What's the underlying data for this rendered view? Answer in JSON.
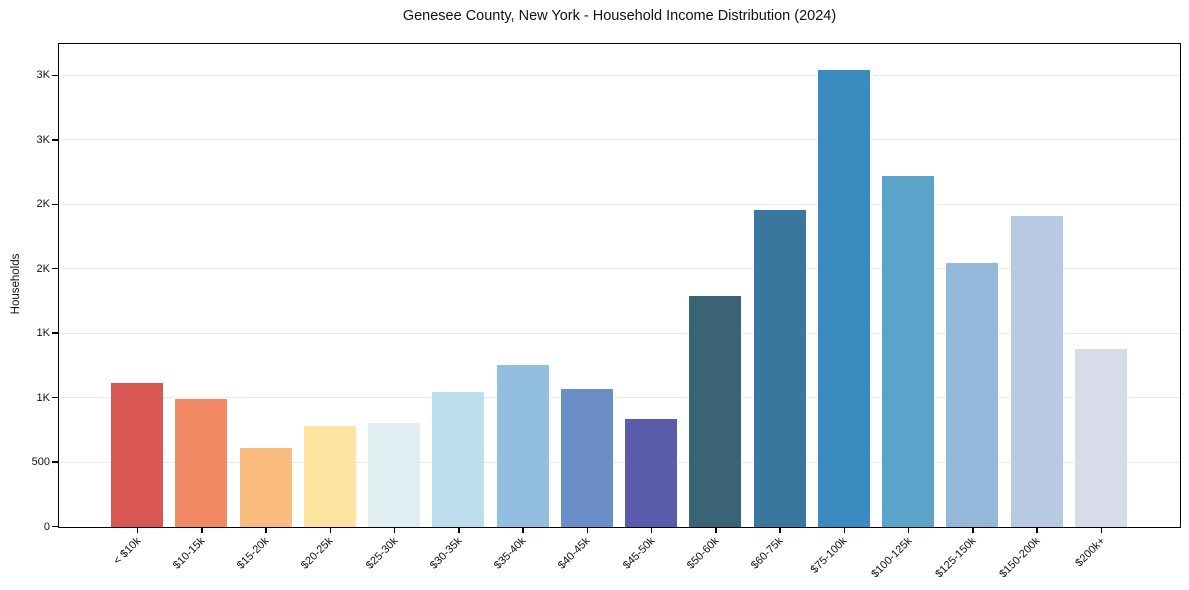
{
  "chart_data": {
    "type": "bar",
    "title": "Genesee County, New York - Household Income Distribution (2024)",
    "xlabel": "",
    "ylabel": "Households",
    "categories": [
      "< $10k",
      "$10-15k",
      "$15-20k",
      "$20-25k",
      "$25-30k",
      "$30-35k",
      "$35-40k",
      "$40-45k",
      "$45-50k",
      "$50-60k",
      "$60-75k",
      "$75-100k",
      "$100-125k",
      "$125-150k",
      "$150-200k",
      "$200k+"
    ],
    "values": [
      1115,
      995,
      615,
      780,
      805,
      1050,
      1255,
      1070,
      840,
      1795,
      2460,
      3545,
      2725,
      2050,
      2415,
      1385
    ],
    "bar_colors": [
      "#d85755",
      "#f18a64",
      "#fbbc80",
      "#fde4a0",
      "#e0eef2",
      "#bcdeee",
      "#92bedf",
      "#6a8ec5",
      "#5b5bab",
      "#3a6376",
      "#38789f",
      "#3a8cc0",
      "#5ba3c9",
      "#93b8d9",
      "#b7cae1",
      "#d8dbe8"
    ],
    "ylim": [
      0,
      3740
    ],
    "yticks": {
      "values": [
        0,
        500,
        1000,
        1500,
        2000,
        2500,
        3000,
        3500
      ],
      "labels": [
        "0",
        "500",
        "1K",
        "1K",
        "2K",
        "2K",
        "3K",
        "3K"
      ]
    },
    "grid": "horizontal",
    "legend": "none"
  },
  "colors": {
    "background": "#ffffff",
    "axis": "#000000",
    "grid": "#eaeaea",
    "text": "#111111"
  }
}
